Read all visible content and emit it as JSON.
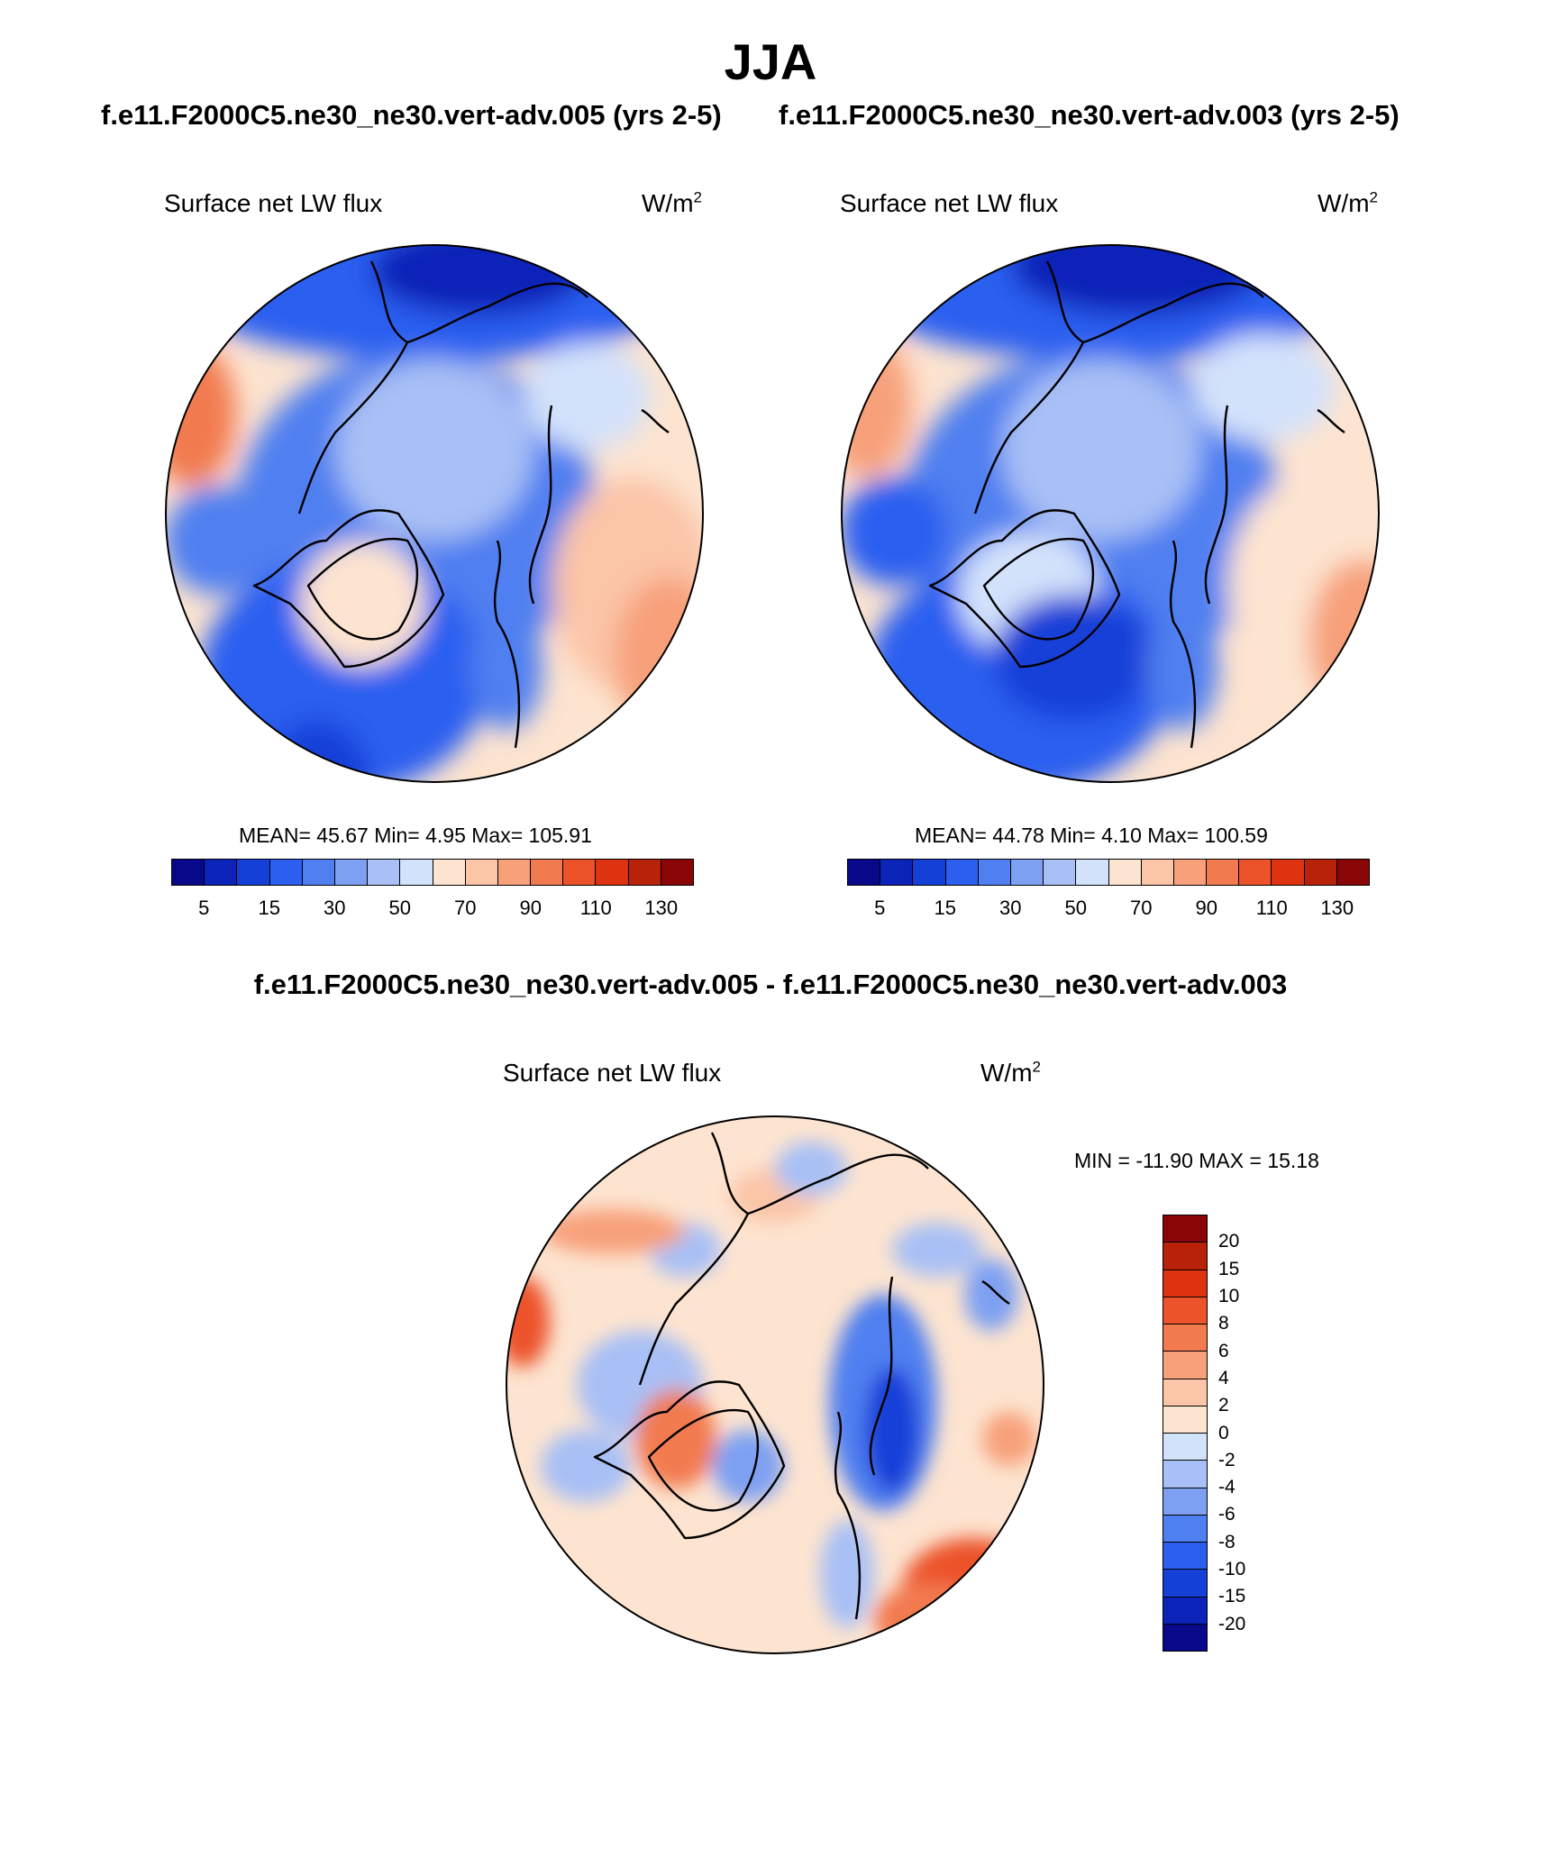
{
  "season_title": "JJA",
  "panels": [
    {
      "case_title": "f.e11.F2000C5.ne30_ne30.vert-adv.005 (yrs 2-5)",
      "variable": "Surface net LW flux",
      "units": "W/m",
      "units_sup": "2",
      "stats_text": "MEAN=  45.67  Min=   4.95  Max= 105.91",
      "stats": {
        "mean": 45.67,
        "min": 4.95,
        "max": 105.91
      }
    },
    {
      "case_title": "f.e11.F2000C5.ne30_ne30.vert-adv.003 (yrs 2-5)",
      "variable": "Surface net LW flux",
      "units": "W/m",
      "units_sup": "2",
      "stats_text": "MEAN=  44.78  Min=   4.10  Max= 100.59",
      "stats": {
        "mean": 44.78,
        "min": 4.1,
        "max": 100.59
      }
    }
  ],
  "diff_panel": {
    "title": "f.e11.F2000C5.ne30_ne30.vert-adv.005 - f.e11.F2000C5.ne30_ne30.vert-adv.003",
    "variable": "Surface net LW flux",
    "units": "W/m",
    "units_sup": "2",
    "stats_text": "MIN = -11.90 MAX =  15.18",
    "stats": {
      "min": -11.9,
      "max": 15.18
    }
  },
  "abs_colorbar": {
    "labels": [
      "5",
      "15",
      "30",
      "50",
      "70",
      "90",
      "110",
      "130"
    ],
    "colors": [
      "#08088a",
      "#0b23b8",
      "#1540d8",
      "#2c5ff0",
      "#4f7ff0",
      "#7ea0f2",
      "#a8c0f5",
      "#d3e2fb",
      "#fde4d0",
      "#fbc5a8",
      "#f7a07a",
      "#f27a4f",
      "#ec532a",
      "#dd3310",
      "#b82208",
      "#8a0505"
    ]
  },
  "diff_colorbar": {
    "labels": [
      "20",
      "15",
      "10",
      "8",
      "6",
      "4",
      "2",
      "0",
      "-2",
      "-4",
      "-6",
      "-8",
      "-10",
      "-15",
      "-20"
    ],
    "colors": [
      "#8a0505",
      "#b82208",
      "#dd3310",
      "#ec532a",
      "#f27a4f",
      "#f7a07a",
      "#fbc5a8",
      "#fde4d0",
      "#d3e2fb",
      "#a8c0f5",
      "#7ea0f2",
      "#4f7ff0",
      "#2c5ff0",
      "#1540d8",
      "#0b23b8",
      "#08088a"
    ]
  }
}
